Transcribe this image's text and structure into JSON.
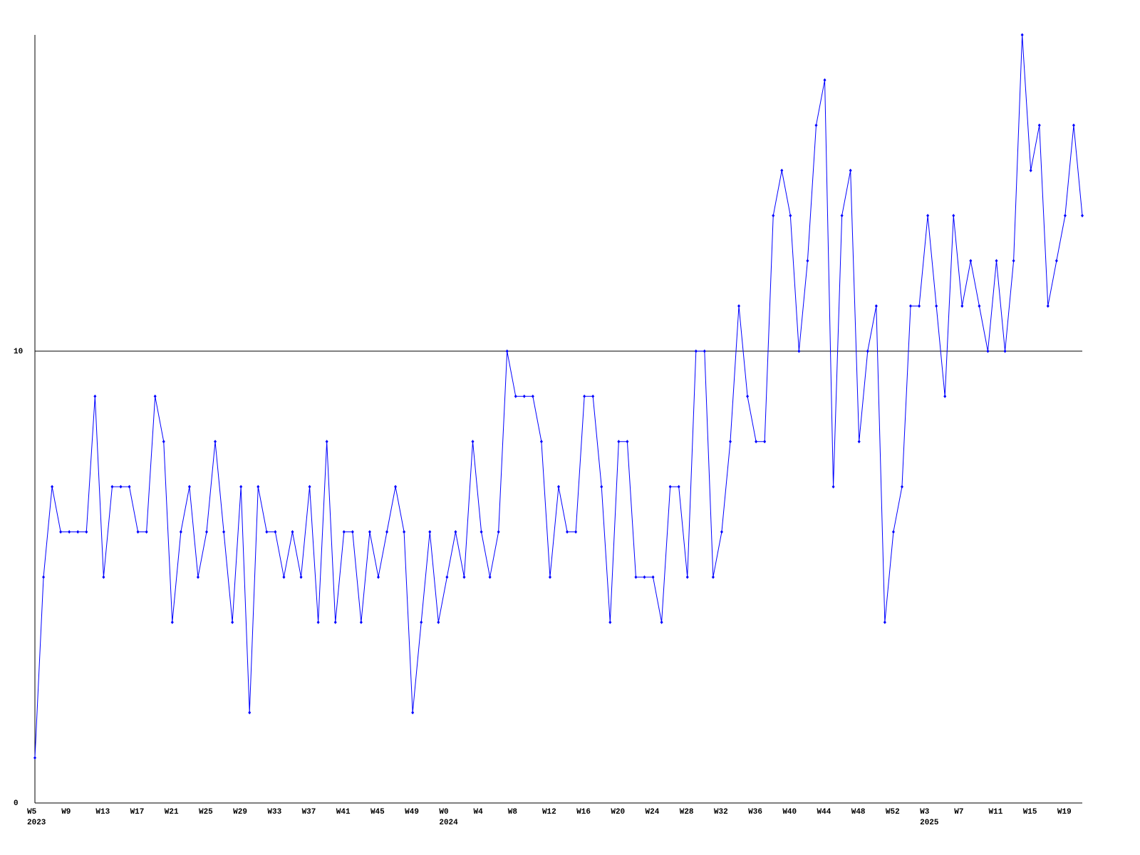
{
  "chart_data": {
    "type": "line",
    "categories": [
      "W5",
      null,
      null,
      null,
      "W9",
      null,
      null,
      null,
      "W13",
      null,
      null,
      null,
      "W17",
      null,
      null,
      null,
      "W21",
      null,
      null,
      null,
      "W25",
      null,
      null,
      null,
      "W29",
      null,
      null,
      null,
      "W33",
      null,
      null,
      null,
      "W37",
      null,
      null,
      null,
      "W41",
      null,
      null,
      null,
      "W45",
      null,
      null,
      null,
      "W49",
      null,
      null,
      null,
      "W0",
      null,
      null,
      null,
      "W4",
      null,
      null,
      null,
      "W8",
      null,
      null,
      null,
      "W12",
      null,
      null,
      null,
      "W16",
      null,
      null,
      null,
      "W20",
      null,
      null,
      null,
      "W24",
      null,
      null,
      null,
      "W28",
      null,
      null,
      null,
      "W32",
      null,
      null,
      null,
      "W36",
      null,
      null,
      null,
      "W40",
      null,
      null,
      null,
      "W44",
      null,
      null,
      null,
      "W48",
      null,
      null,
      null,
      "W52",
      null,
      null,
      null,
      "W3",
      null,
      null,
      null,
      "W7",
      null,
      null,
      null,
      "W11",
      null,
      null,
      null,
      "W15",
      null,
      null,
      null,
      "W19",
      null,
      null
    ],
    "years": [
      "2023",
      null,
      null,
      null,
      null,
      null,
      null,
      null,
      null,
      null,
      null,
      null,
      null,
      null,
      null,
      null,
      null,
      null,
      null,
      null,
      null,
      null,
      null,
      null,
      null,
      null,
      null,
      null,
      null,
      null,
      null,
      null,
      null,
      null,
      null,
      null,
      null,
      null,
      null,
      null,
      null,
      null,
      null,
      null,
      null,
      null,
      null,
      null,
      "2024",
      null,
      null,
      null,
      null,
      null,
      null,
      null,
      null,
      null,
      null,
      null,
      null,
      null,
      null,
      null,
      null,
      null,
      null,
      null,
      null,
      null,
      null,
      null,
      null,
      null,
      null,
      null,
      null,
      null,
      null,
      null,
      null,
      null,
      null,
      null,
      null,
      null,
      null,
      null,
      null,
      null,
      null,
      null,
      null,
      null,
      null,
      null,
      null,
      null,
      null,
      null,
      null,
      null,
      null,
      null,
      "2025",
      null,
      null,
      null,
      null,
      null,
      null,
      null,
      null,
      null,
      null,
      null,
      null,
      null,
      null,
      null,
      null,
      null,
      null
    ],
    "series": [
      {
        "color": "#0000ff",
        "values": [
          1,
          5,
          7,
          6,
          6,
          6,
          6,
          9,
          5,
          7,
          7,
          7,
          6,
          6,
          9,
          8,
          4,
          6,
          7,
          5,
          6,
          8,
          6,
          4,
          7,
          2,
          7,
          6,
          6,
          5,
          6,
          5,
          7,
          4,
          8,
          4,
          6,
          6,
          4,
          6,
          5,
          6,
          7,
          6,
          2,
          4,
          6,
          4,
          5,
          6,
          5,
          8,
          6,
          5,
          6,
          10,
          9,
          9,
          9,
          8,
          5,
          7,
          6,
          6,
          9,
          9,
          7,
          4,
          8,
          8,
          5,
          5,
          5,
          4,
          7,
          7,
          5,
          10,
          10,
          5,
          6,
          8,
          11,
          9,
          8,
          8,
          13,
          14,
          13,
          10,
          12,
          15,
          16,
          7,
          13,
          14,
          8,
          10,
          11,
          4,
          6,
          7,
          11,
          11,
          13,
          11,
          9,
          13,
          11,
          12,
          11,
          10,
          12,
          10,
          12,
          17,
          14,
          15,
          11,
          12,
          13,
          15,
          13
        ]
      }
    ],
    "ylim": [
      0,
      17
    ],
    "yticks": [
      0,
      10
    ],
    "grid": true,
    "markers": true
  }
}
